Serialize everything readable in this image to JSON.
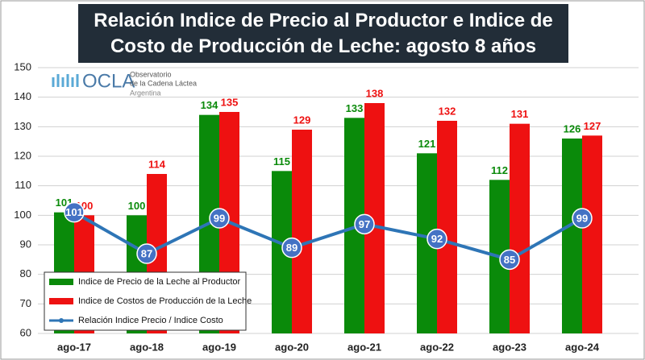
{
  "chart_data": {
    "type": "bar",
    "title": "Relación Indice de Precio al Productor e Indice de Costo de Producción de Leche: agosto 8 años",
    "categories": [
      "ago-17",
      "ago-18",
      "ago-19",
      "ago-20",
      "ago-21",
      "ago-22",
      "ago-23",
      "ago-24"
    ],
    "series": [
      {
        "name": "Indice de Precio de la Leche al Productor",
        "type": "bar",
        "color": "#0a8a0a",
        "values": [
          101,
          100,
          134,
          115,
          133,
          121,
          112,
          126
        ]
      },
      {
        "name": "Indice de Costos de Producción de la Leche",
        "type": "bar",
        "color": "#ee1111",
        "values": [
          100,
          114,
          135,
          129,
          138,
          132,
          131,
          127
        ]
      },
      {
        "name": "Relación Indice Precio / Indice Costo",
        "type": "line",
        "color": "#2e75b6",
        "values": [
          101,
          87,
          99,
          89,
          97,
          92,
          85,
          99
        ]
      }
    ],
    "ylim": [
      60,
      150
    ],
    "yticks": [
      60,
      70,
      80,
      90,
      100,
      110,
      120,
      130,
      140,
      150
    ],
    "grid": true,
    "legend": "lower-left"
  },
  "logo": {
    "name": "OCLA",
    "line1": "Observatorio",
    "line2": "de la Cadena Láctea",
    "line3": "Argentina"
  }
}
